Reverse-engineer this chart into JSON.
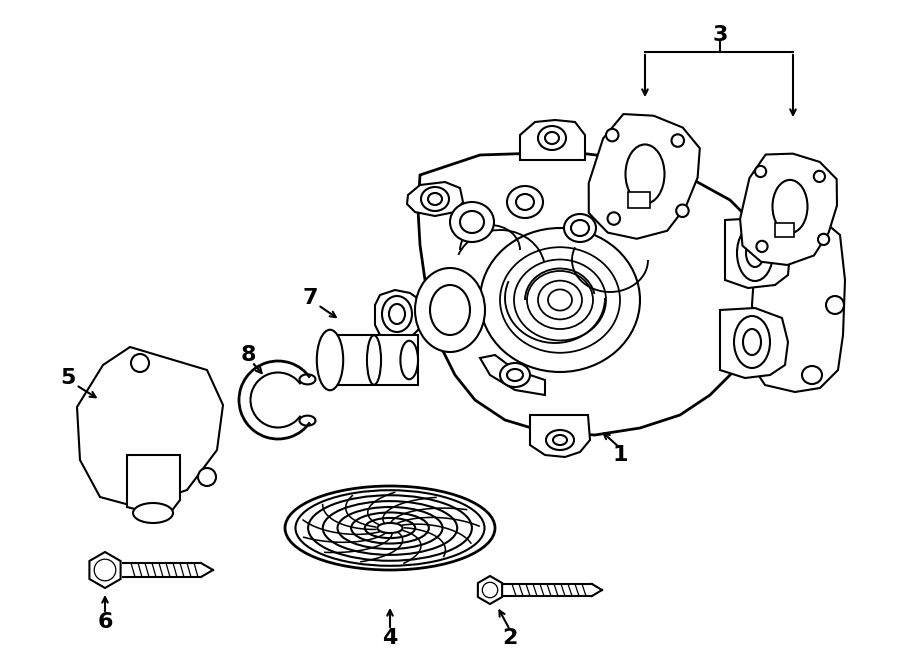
{
  "bg_color": "#ffffff",
  "line_color": "#000000",
  "fig_width": 9.0,
  "fig_height": 6.61,
  "dpi": 100,
  "lw": 1.5,
  "lw_thin": 0.9,
  "lw_thick": 2.0,
  "label_fontsize": 16
}
